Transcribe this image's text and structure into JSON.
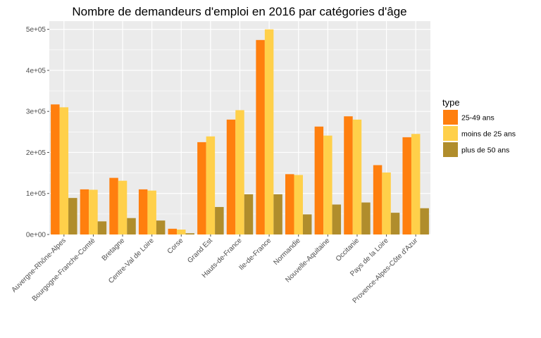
{
  "chart_data": {
    "type": "bar",
    "title": "Nombre de demandeurs d'emploi en 2016 par catégories d'âge",
    "xlabel": "",
    "ylabel": "",
    "ylim": [
      0,
      520000
    ],
    "yticks": [
      0,
      100000,
      200000,
      300000,
      400000,
      500000
    ],
    "ytick_labels": [
      "0e+00",
      "1e+05",
      "2e+05",
      "3e+05",
      "4e+05",
      "5e+05"
    ],
    "grid": true,
    "legend_title": "type",
    "legend_position": "right",
    "categories": [
      "Auvergne-Rhône-Alpes",
      "Bourgogne-Franche-Comté",
      "Bretagne",
      "Centre-Val de Loire",
      "Corse",
      "Grand Est",
      "Hauts-de-France",
      "Ile-de-France",
      "Normandie",
      "Nouvelle-Aquitaine",
      "Occitanie",
      "Pays de la Loire",
      "Provence-Alpes-Côte d'Azur"
    ],
    "series": [
      {
        "name": "25-49 ans",
        "color": "#ff7f0e",
        "values": [
          317000,
          110000,
          138000,
          110000,
          14000,
          225000,
          280000,
          474000,
          147000,
          263000,
          288000,
          169000,
          237000
        ]
      },
      {
        "name": "moins de 25 ans",
        "color": "#ffd04a",
        "values": [
          310000,
          109000,
          131000,
          107000,
          12000,
          239000,
          303000,
          500000,
          145000,
          241000,
          280000,
          151000,
          245000
        ]
      },
      {
        "name": "plus de 50 ans",
        "color": "#b08d2c",
        "values": [
          89000,
          32000,
          40000,
          34000,
          3000,
          67000,
          98000,
          98000,
          49000,
          73000,
          78000,
          53000,
          64000
        ]
      }
    ]
  }
}
